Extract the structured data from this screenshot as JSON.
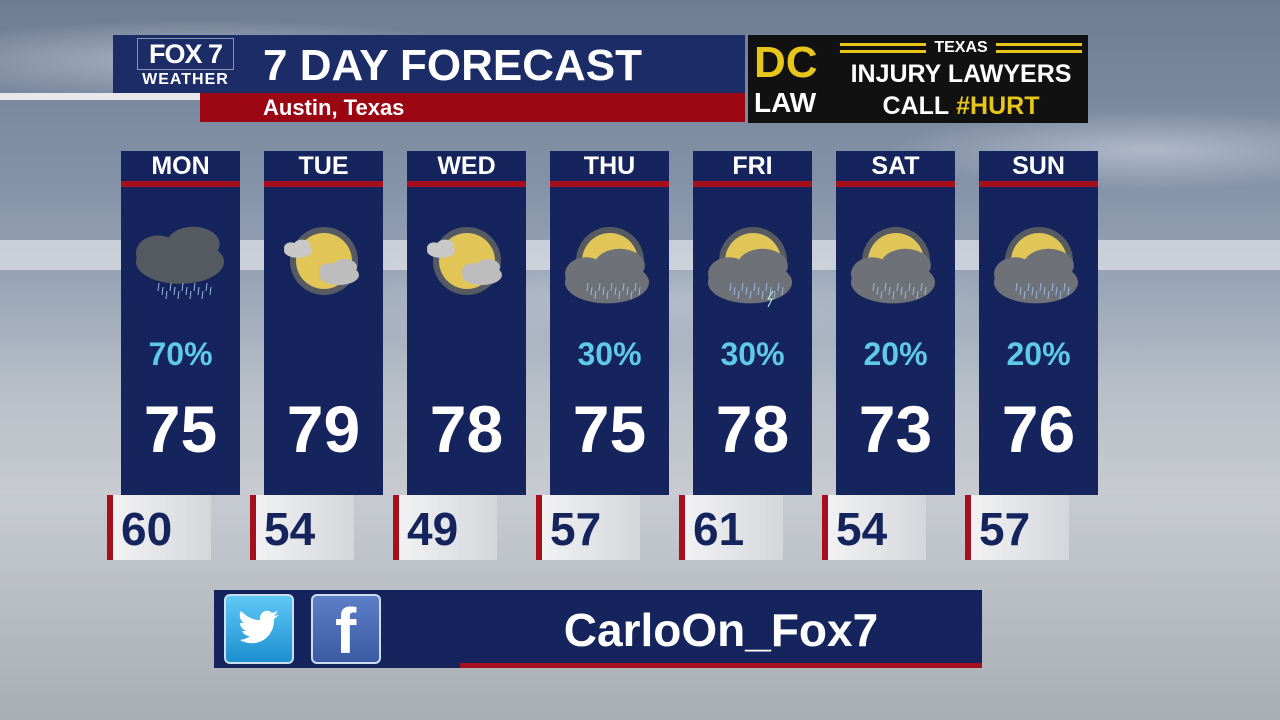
{
  "header": {
    "logo_top": "FOX 7",
    "logo_bottom": "WEATHER",
    "title": "7 DAY FORECAST",
    "location": "Austin, Texas"
  },
  "sponsor": {
    "dc": "DC",
    "law": "LAW",
    "state": "TEXAS",
    "line1": "INJURY LAWYERS",
    "call": "CALL",
    "hashtag": "#HURT",
    "accent": "#e8c51a"
  },
  "days": [
    {
      "day": "MON",
      "icon": "rain-cloud-icon",
      "precip": "70%",
      "high": "75",
      "low": "60"
    },
    {
      "day": "TUE",
      "icon": "mostly-sunny-icon",
      "precip": "",
      "high": "79",
      "low": "54"
    },
    {
      "day": "WED",
      "icon": "mostly-sunny-icon",
      "precip": "",
      "high": "78",
      "low": "49"
    },
    {
      "day": "THU",
      "icon": "partly-cloudy-showers-icon",
      "precip": "30%",
      "high": "75",
      "low": "57"
    },
    {
      "day": "FRI",
      "icon": "partly-cloudy-storms-icon",
      "precip": "30%",
      "high": "78",
      "low": "61"
    },
    {
      "day": "SAT",
      "icon": "partly-cloudy-showers-icon",
      "precip": "20%",
      "high": "73",
      "low": "54"
    },
    {
      "day": "SUN",
      "icon": "partly-cloudy-showers-icon",
      "precip": "20%",
      "high": "76",
      "low": "57"
    }
  ],
  "social": {
    "handle": "CarloOn_Fox7",
    "icons": [
      "twitter-icon",
      "facebook-icon"
    ],
    "fb_glyph": "f"
  },
  "colors": {
    "navy": "#15245c",
    "red": "#a5101c",
    "precip": "#5fc9e8"
  }
}
